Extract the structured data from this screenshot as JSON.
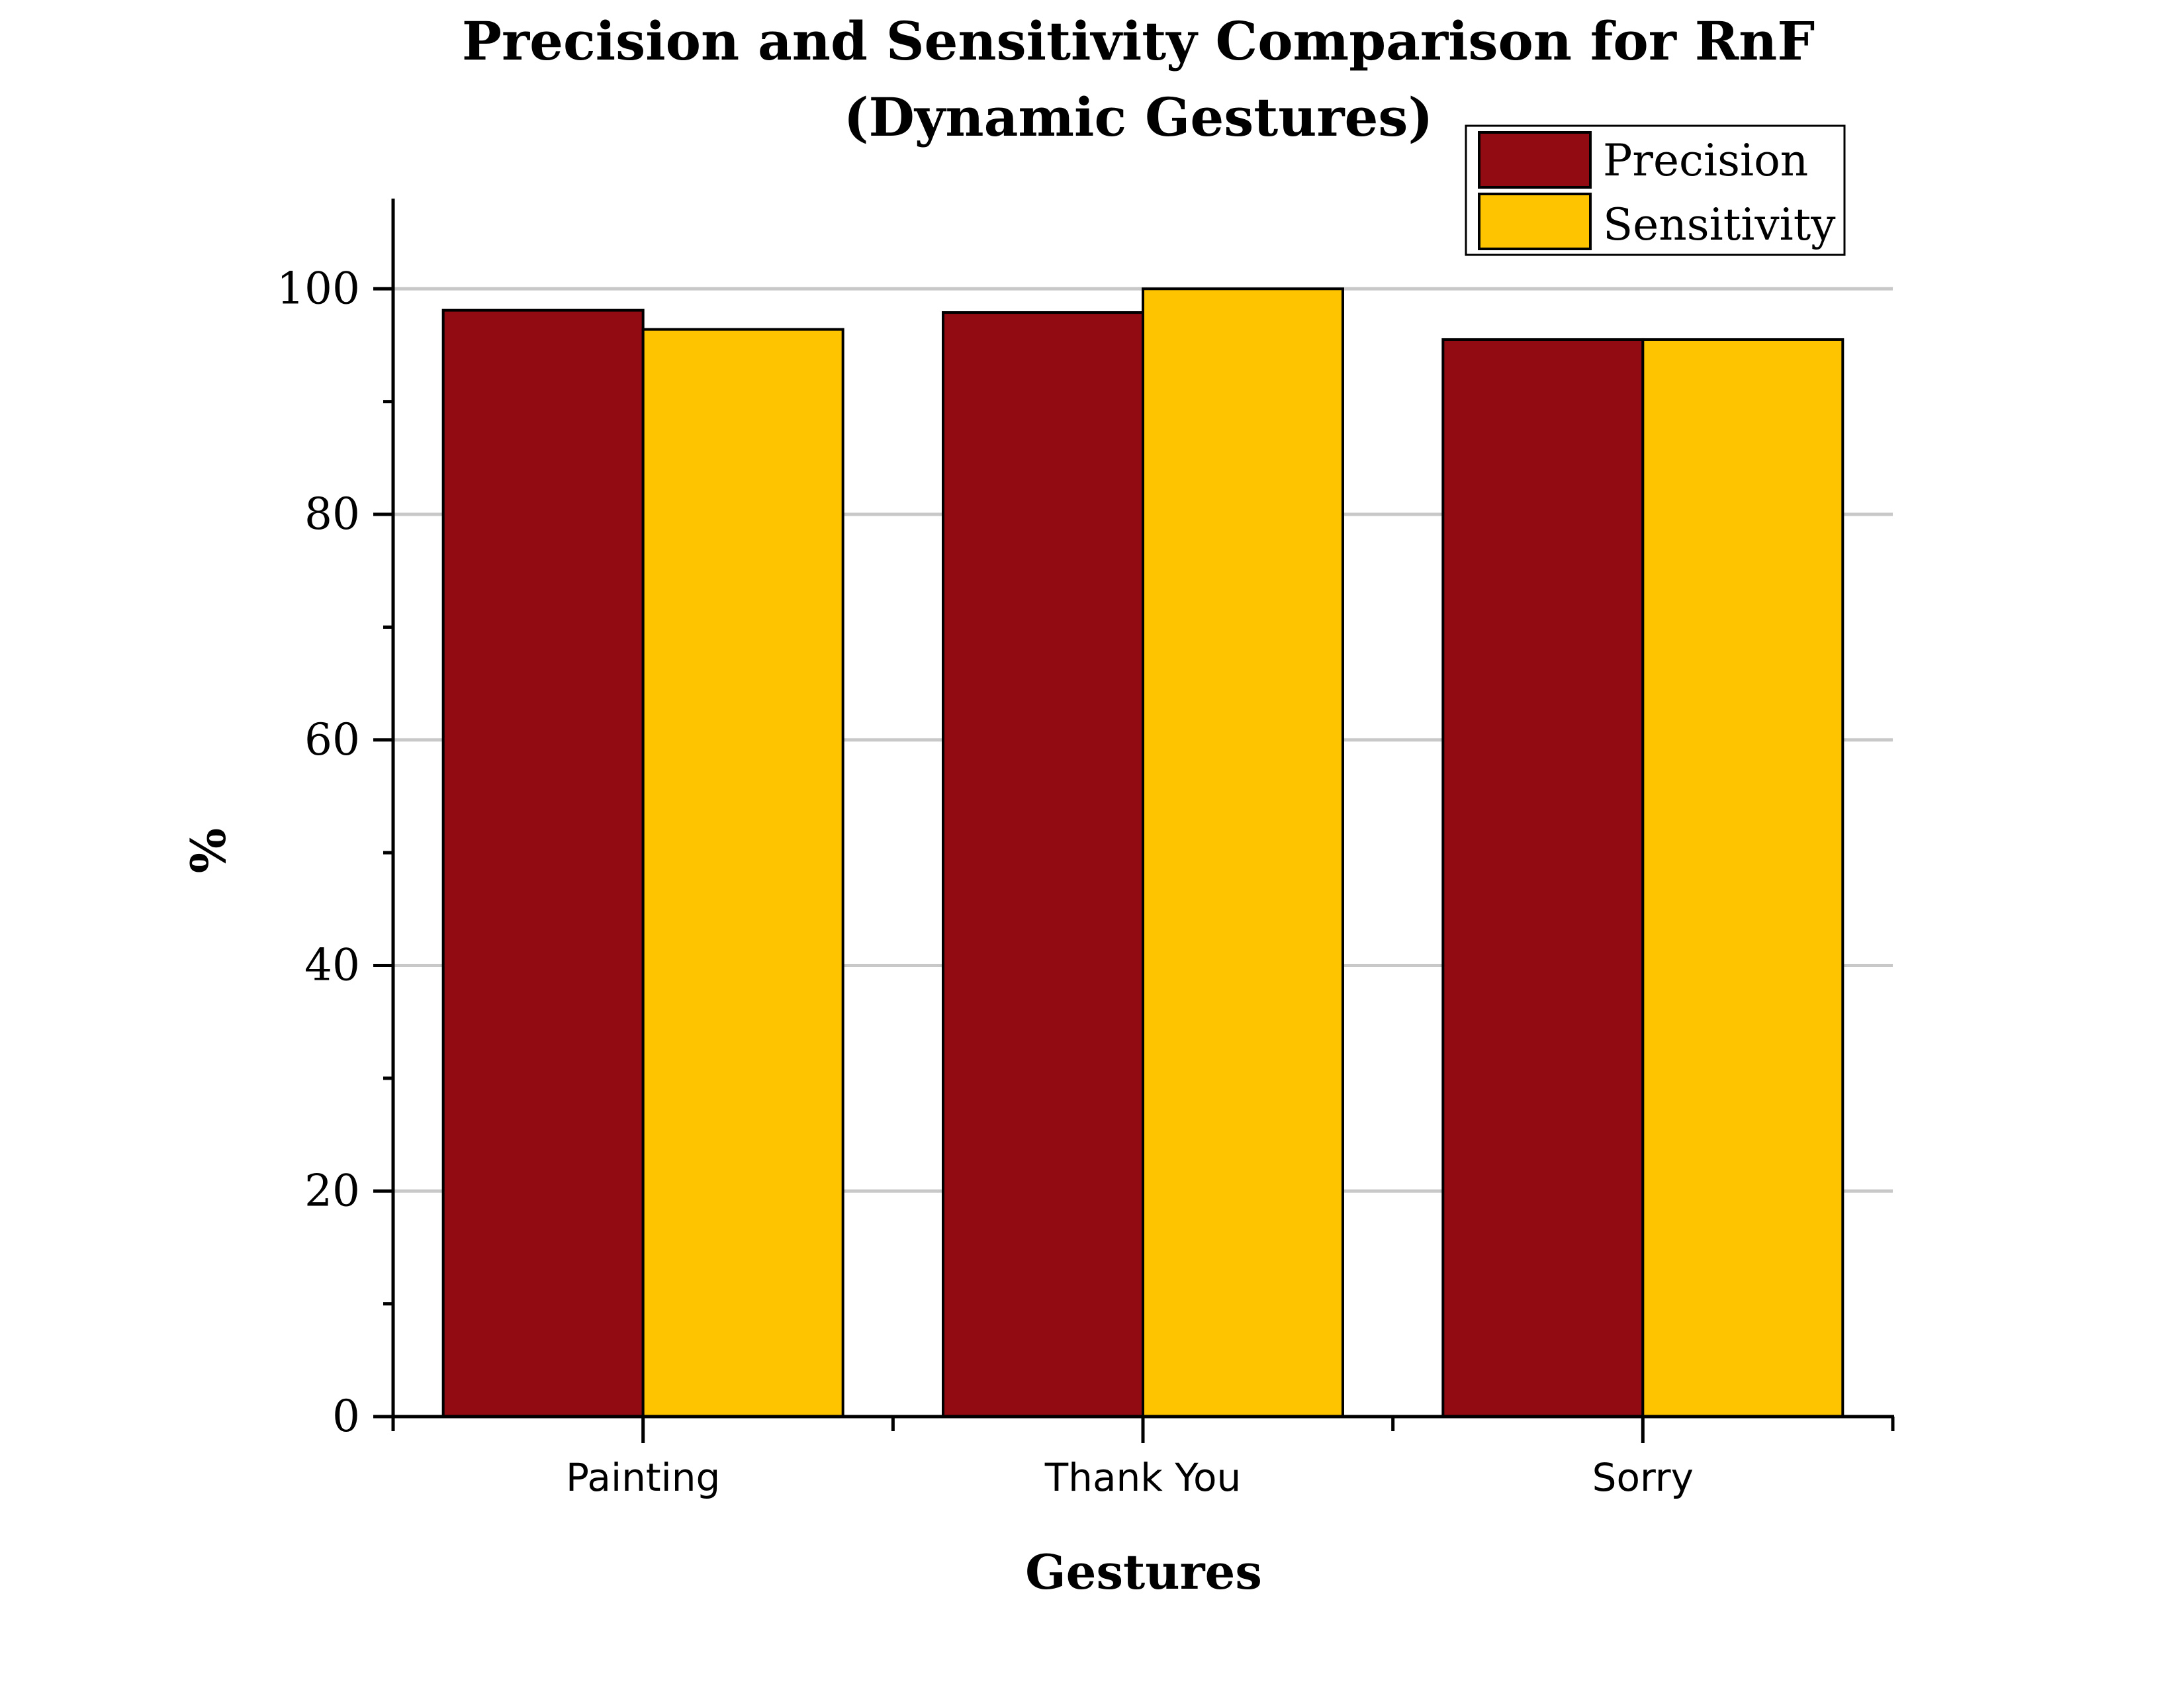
{
  "chart_data": {
    "type": "bar",
    "title": "Precision and Sensitivity Comparison for RnF",
    "subtitle": "(Dynamic Gestures)",
    "xlabel": "Gestures",
    "ylabel": "%",
    "categories": [
      "Painting",
      "Thank You",
      "Sorry"
    ],
    "series": [
      {
        "name": "Precision",
        "color": "#920a12",
        "values": [
          98.1,
          97.9,
          95.5
        ]
      },
      {
        "name": "Sensitivity",
        "color": "#ffc400",
        "values": [
          96.4,
          100,
          95.5
        ]
      }
    ],
    "ylim": [
      0,
      108
    ],
    "yticks": [
      0,
      20,
      40,
      60,
      80,
      100
    ],
    "ytick_labels": [
      "0",
      "20",
      "40",
      "60",
      "80",
      "100"
    ],
    "grid": true,
    "legend_position": "top-right"
  }
}
